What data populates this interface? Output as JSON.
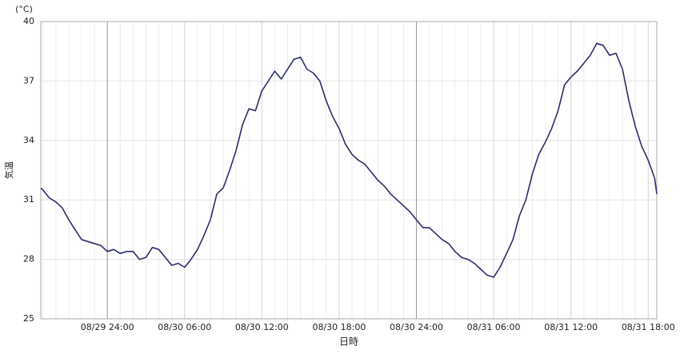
{
  "chart_data": {
    "type": "line",
    "y_label": "気温",
    "y_unit": "(°C)",
    "x_label": "日時",
    "x": [
      "08/29 18:50",
      "08/29 19:00",
      "08/29 19:30",
      "08/29 20:00",
      "08/29 20:30",
      "08/29 21:00",
      "08/29 21:30",
      "08/29 22:00",
      "08/29 22:30",
      "08/29 23:00",
      "08/29 23:30",
      "08/30 00:00",
      "08/30 00:30",
      "08/30 01:00",
      "08/30 01:30",
      "08/30 02:00",
      "08/30 02:30",
      "08/30 03:00",
      "08/30 03:30",
      "08/30 04:00",
      "08/30 04:30",
      "08/30 05:00",
      "08/30 05:30",
      "08/30 06:00",
      "08/30 06:30",
      "08/30 07:00",
      "08/30 07:30",
      "08/30 08:00",
      "08/30 08:30",
      "08/30 09:00",
      "08/30 09:30",
      "08/30 10:00",
      "08/30 10:30",
      "08/30 11:00",
      "08/30 11:30",
      "08/30 12:00",
      "08/30 12:30",
      "08/30 13:00",
      "08/30 13:30",
      "08/30 14:00",
      "08/30 14:30",
      "08/30 15:00",
      "08/30 15:30",
      "08/30 16:00",
      "08/30 16:30",
      "08/30 17:00",
      "08/30 17:30",
      "08/30 18:00",
      "08/30 18:30",
      "08/30 19:00",
      "08/30 19:30",
      "08/30 20:00",
      "08/30 20:30",
      "08/30 21:00",
      "08/30 21:30",
      "08/30 22:00",
      "08/30 22:30",
      "08/30 23:00",
      "08/30 23:30",
      "08/31 00:00",
      "08/31 00:30",
      "08/31 01:00",
      "08/31 01:30",
      "08/31 02:00",
      "08/31 02:30",
      "08/31 03:00",
      "08/31 03:30",
      "08/31 04:00",
      "08/31 04:30",
      "08/31 05:00",
      "08/31 05:30",
      "08/31 06:00",
      "08/31 06:30",
      "08/31 07:00",
      "08/31 07:30",
      "08/31 08:00",
      "08/31 08:30",
      "08/31 09:00",
      "08/31 09:30",
      "08/31 10:00",
      "08/31 10:30",
      "08/31 11:00",
      "08/31 11:30",
      "08/31 12:00",
      "08/31 12:30",
      "08/31 13:00",
      "08/31 13:30",
      "08/31 14:00",
      "08/31 14:30",
      "08/31 15:00",
      "08/31 15:30",
      "08/31 16:00",
      "08/31 16:30",
      "08/31 17:00",
      "08/31 17:30",
      "08/31 18:00",
      "08/31 18:30",
      "08/31 18:40"
    ],
    "series": [
      {
        "color": "#2b2d6e",
        "values": [
          31.6,
          31.5,
          31.1,
          30.9,
          30.6,
          30.0,
          29.5,
          29.0,
          28.9,
          28.8,
          28.7,
          28.4,
          28.5,
          28.3,
          28.4,
          28.4,
          28.0,
          28.1,
          28.6,
          28.5,
          28.1,
          27.7,
          27.8,
          27.6,
          28.0,
          28.5,
          29.2,
          30.0,
          31.3,
          31.6,
          32.5,
          33.5,
          34.8,
          35.6,
          35.5,
          36.5,
          37.0,
          37.5,
          37.1,
          37.6,
          38.1,
          38.2,
          37.6,
          37.4,
          37.0,
          36.0,
          35.2,
          34.6,
          33.8,
          33.3,
          33.0,
          32.8,
          32.4,
          32.0,
          31.7,
          31.3,
          31.0,
          30.7,
          30.4,
          30.0,
          29.6,
          29.6,
          29.3,
          29.0,
          28.8,
          28.4,
          28.1,
          28.0,
          27.8,
          27.5,
          27.2,
          27.1,
          27.6,
          28.3,
          29.0,
          30.2,
          31.0,
          32.3,
          33.3,
          33.9,
          34.6,
          35.5,
          36.8,
          37.2,
          37.5,
          37.9,
          38.3,
          38.9,
          38.8,
          38.3,
          38.4,
          37.6,
          36.0,
          34.7,
          33.7,
          33.0,
          32.1,
          31.3
        ]
      }
    ],
    "xlim": [
      "08/29 18:50",
      "08/31 18:40"
    ],
    "xticks": [
      "08/29 24:00",
      "08/30 06:00",
      "08/30 12:00",
      "08/30 18:00",
      "08/30 24:00",
      "08/31 06:00",
      "08/31 12:00",
      "08/31 18:00"
    ],
    "ylim": [
      25,
      40
    ],
    "yticks": [
      25,
      28,
      31,
      34,
      37,
      40
    ],
    "grid": true
  }
}
